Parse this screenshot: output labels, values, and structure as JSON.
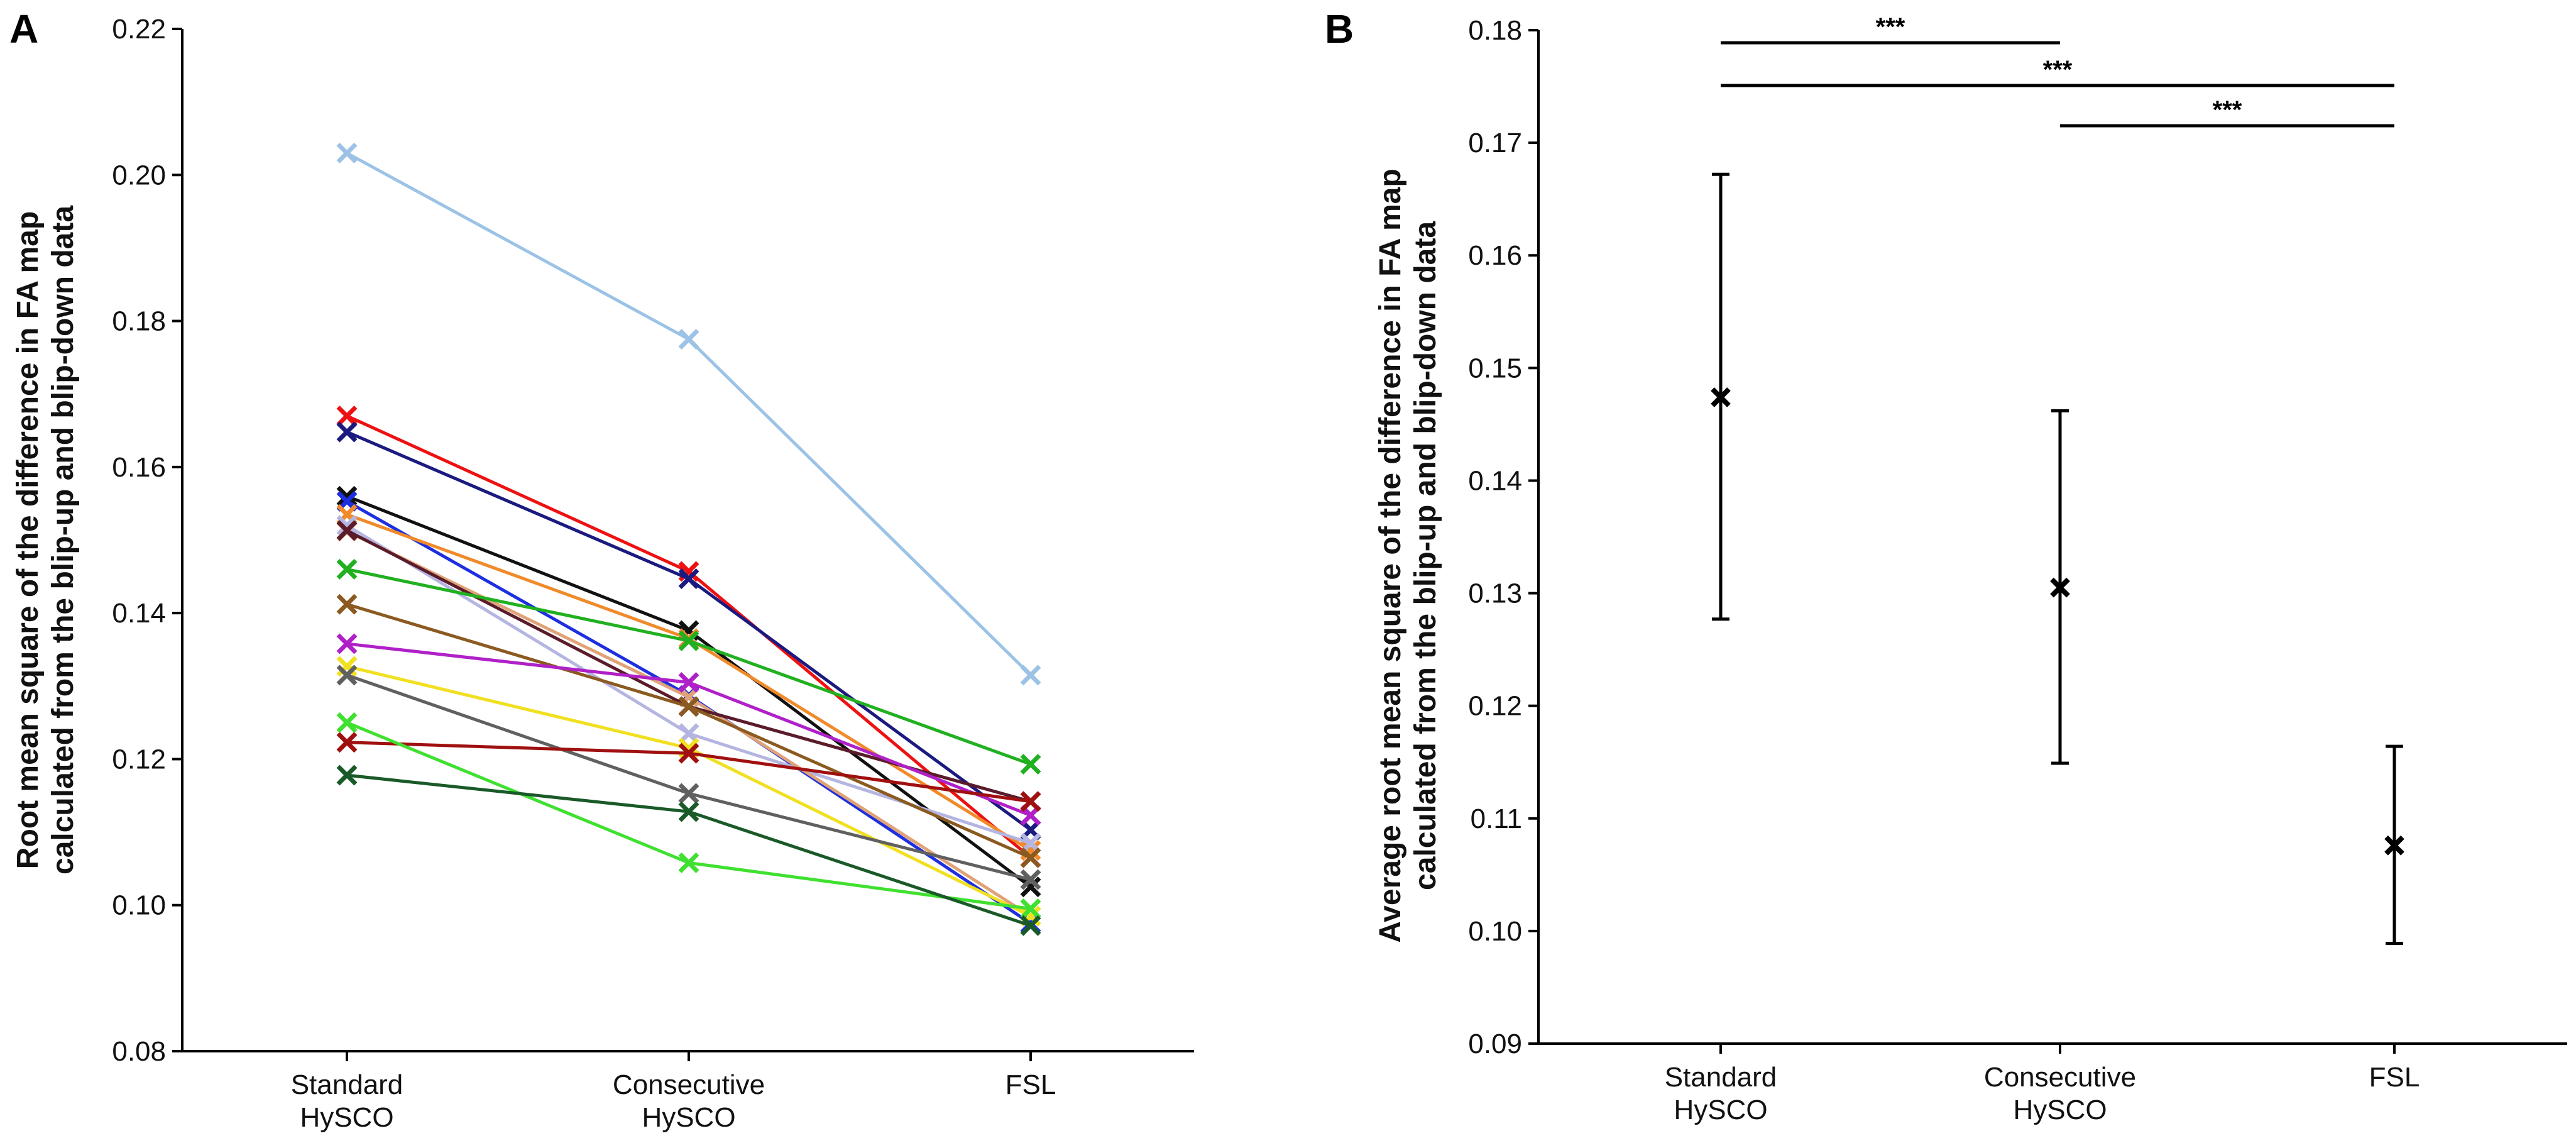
{
  "chart_data": [
    {
      "type": "line",
      "panel": "A",
      "ylabel_lines": [
        "Root mean square of the difference in FA map",
        "calculated from the blip-up and blip-down data"
      ],
      "categories": [
        [
          "Standard",
          "HySCO"
        ],
        [
          "Consecutive",
          "HySCO"
        ],
        [
          "FSL"
        ]
      ],
      "ylim": [
        0.08,
        0.22
      ],
      "yticks": [
        "0.08",
        "0.10",
        "0.12",
        "0.14",
        "0.16",
        "0.18",
        "0.20",
        "0.22"
      ],
      "series": [
        {
          "color": "#9cc3e6",
          "values": [
            0.203,
            0.1775,
            0.1315
          ]
        },
        {
          "color": "#ee1111",
          "values": [
            0.167,
            0.1457,
            0.1065
          ]
        },
        {
          "color": "#1a1a80",
          "values": [
            0.1648,
            0.1447,
            0.1103
          ]
        },
        {
          "color": "#111111",
          "values": [
            0.156,
            0.1376,
            0.1025
          ]
        },
        {
          "color": "#1d2fe0",
          "values": [
            0.1553,
            0.1287,
            0.0975
          ]
        },
        {
          "color": "#f08a2a",
          "values": [
            0.1535,
            0.1365,
            0.1075
          ]
        },
        {
          "color": "#b5b5e2",
          "values": [
            0.152,
            0.1235,
            0.1085
          ]
        },
        {
          "color": "#e0a277",
          "values": [
            0.1512,
            0.1285,
            0.0985
          ]
        },
        {
          "color": "#5a1c2a",
          "values": [
            0.1513,
            0.1272,
            0.1142
          ]
        },
        {
          "color": "#20b020",
          "values": [
            0.146,
            0.1362,
            0.1193
          ]
        },
        {
          "color": "#8b5a20",
          "values": [
            0.1412,
            0.1272,
            0.1065
          ]
        },
        {
          "color": "#b020c8",
          "values": [
            0.1358,
            0.1305,
            0.1123
          ]
        },
        {
          "color": "#f0e020",
          "values": [
            0.1327,
            0.1215,
            0.0985
          ]
        },
        {
          "color": "#606060",
          "values": [
            0.1315,
            0.1153,
            0.1035
          ]
        },
        {
          "color": "#a01010",
          "values": [
            0.1223,
            0.1208,
            0.1142
          ]
        },
        {
          "color": "#40e030",
          "values": [
            0.125,
            0.1058,
            0.0995
          ]
        },
        {
          "color": "#1a5a28",
          "values": [
            0.1178,
            0.1128,
            0.0972
          ]
        }
      ]
    },
    {
      "type": "scatter",
      "panel": "B",
      "ylabel_lines": [
        "Average root mean square of the difference in FA map",
        "calculated from the blip-up and blip-down data"
      ],
      "categories": [
        [
          "Standard",
          "HySCO"
        ],
        [
          "Consecutive",
          "HySCO"
        ],
        [
          "FSL"
        ]
      ],
      "ylim": [
        0.09,
        0.18
      ],
      "yticks": [
        "0.09",
        "0.10",
        "0.11",
        "0.12",
        "0.13",
        "0.14",
        "0.15",
        "0.16",
        "0.17",
        "0.18"
      ],
      "means": [
        0.1474,
        0.1305,
        0.1076
      ],
      "error_low": [
        0.1277,
        0.1149,
        0.0989
      ],
      "error_high": [
        0.1672,
        0.1462,
        0.1164
      ],
      "significance": [
        {
          "from": 0,
          "to": 1,
          "label": "***"
        },
        {
          "from": 0,
          "to": 2,
          "label": "***"
        },
        {
          "from": 1,
          "to": 2,
          "label": "***"
        }
      ]
    }
  ]
}
